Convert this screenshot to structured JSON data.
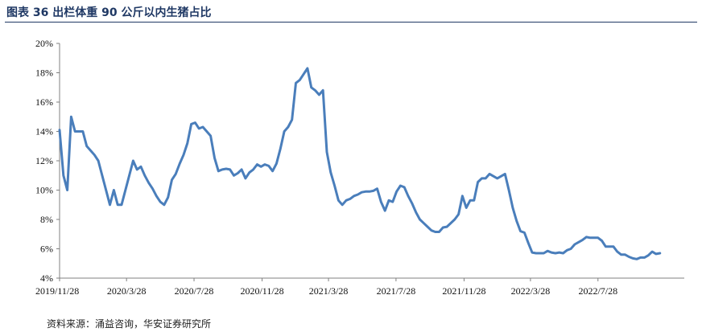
{
  "figure": {
    "title": "图表 36 出栏体重 90 公斤以内生猪占比",
    "source": "资料来源：涌益咨询，华安证券研究所"
  },
  "colors": {
    "title": "#1f3864",
    "line": "#4a7ebb",
    "axis": "#808080"
  },
  "chart_data": {
    "type": "line",
    "title": "",
    "xlabel": "",
    "ylabel": "",
    "ylim": [
      4,
      20
    ],
    "yticks": [
      "4%",
      "6%",
      "8%",
      "10%",
      "12%",
      "14%",
      "16%",
      "18%",
      "20%"
    ],
    "x_range": [
      "2019-11-28",
      "2022-12-31"
    ],
    "xticks": [
      "2019/11/28",
      "2020/3/28",
      "2020/7/28",
      "2020/11/28",
      "2021/3/28",
      "2021/7/28",
      "2021/11/28",
      "2022/3/28",
      "2022/7/28"
    ],
    "grid": false,
    "legend": "none",
    "series": [
      {
        "name": "",
        "points": [
          [
            "2019-11-28",
            14.1
          ],
          [
            "2019-12-05",
            11.0
          ],
          [
            "2019-12-12",
            10.0
          ],
          [
            "2019-12-19",
            15.0
          ],
          [
            "2019-12-26",
            14.0
          ],
          [
            "2020-01-02",
            14.0
          ],
          [
            "2020-01-09",
            14.0
          ],
          [
            "2020-01-16",
            13.0
          ],
          [
            "2020-01-23",
            12.7
          ],
          [
            "2020-01-30",
            12.4
          ],
          [
            "2020-02-06",
            12.0
          ],
          [
            "2020-02-13",
            11.0
          ],
          [
            "2020-02-20",
            10.0
          ],
          [
            "2020-02-27",
            9.0
          ],
          [
            "2020-03-05",
            10.0
          ],
          [
            "2020-03-12",
            9.0
          ],
          [
            "2020-03-19",
            9.0
          ],
          [
            "2020-03-26",
            10.0
          ],
          [
            "2020-04-02",
            11.0
          ],
          [
            "2020-04-09",
            12.0
          ],
          [
            "2020-04-16",
            11.4
          ],
          [
            "2020-04-23",
            11.6
          ],
          [
            "2020-04-30",
            11.0
          ],
          [
            "2020-05-07",
            10.5
          ],
          [
            "2020-05-14",
            10.1
          ],
          [
            "2020-05-21",
            9.6
          ],
          [
            "2020-05-28",
            9.2
          ],
          [
            "2020-06-04",
            9.0
          ],
          [
            "2020-06-11",
            9.5
          ],
          [
            "2020-06-18",
            10.7
          ],
          [
            "2020-06-25",
            11.1
          ],
          [
            "2020-07-02",
            11.8
          ],
          [
            "2020-07-09",
            12.4
          ],
          [
            "2020-07-16",
            13.2
          ],
          [
            "2020-07-23",
            14.5
          ],
          [
            "2020-07-30",
            14.6
          ],
          [
            "2020-08-06",
            14.2
          ],
          [
            "2020-08-13",
            14.3
          ],
          [
            "2020-08-20",
            14.0
          ],
          [
            "2020-08-27",
            13.7
          ],
          [
            "2020-09-03",
            12.2
          ],
          [
            "2020-09-10",
            11.3
          ],
          [
            "2020-09-17",
            11.4
          ],
          [
            "2020-09-24",
            11.45
          ],
          [
            "2020-10-01",
            11.4
          ],
          [
            "2020-10-08",
            11.0
          ],
          [
            "2020-10-15",
            11.15
          ],
          [
            "2020-10-22",
            11.4
          ],
          [
            "2020-10-29",
            10.8
          ],
          [
            "2020-11-05",
            11.2
          ],
          [
            "2020-11-12",
            11.4
          ],
          [
            "2020-11-19",
            11.75
          ],
          [
            "2020-11-26",
            11.6
          ],
          [
            "2020-12-03",
            11.75
          ],
          [
            "2020-12-10",
            11.65
          ],
          [
            "2020-12-17",
            11.3
          ],
          [
            "2020-12-24",
            11.8
          ],
          [
            "2020-12-31",
            12.8
          ],
          [
            "2021-01-07",
            14.0
          ],
          [
            "2021-01-14",
            14.3
          ],
          [
            "2021-01-21",
            14.8
          ],
          [
            "2021-01-28",
            17.3
          ],
          [
            "2021-02-04",
            17.5
          ],
          [
            "2021-02-11",
            17.9
          ],
          [
            "2021-02-18",
            18.3
          ],
          [
            "2021-02-25",
            17.0
          ],
          [
            "2021-03-04",
            16.8
          ],
          [
            "2021-03-11",
            16.5
          ],
          [
            "2021-03-18",
            16.8
          ],
          [
            "2021-03-25",
            12.6
          ],
          [
            "2021-04-01",
            11.2
          ],
          [
            "2021-04-08",
            10.3
          ],
          [
            "2021-04-15",
            9.3
          ],
          [
            "2021-04-22",
            9.0
          ],
          [
            "2021-04-29",
            9.3
          ],
          [
            "2021-05-06",
            9.4
          ],
          [
            "2021-05-13",
            9.6
          ],
          [
            "2021-05-20",
            9.7
          ],
          [
            "2021-05-27",
            9.85
          ],
          [
            "2021-06-03",
            9.9
          ],
          [
            "2021-06-10",
            9.9
          ],
          [
            "2021-06-17",
            9.95
          ],
          [
            "2021-06-24",
            10.1
          ],
          [
            "2021-07-01",
            9.2
          ],
          [
            "2021-07-08",
            8.6
          ],
          [
            "2021-07-15",
            9.3
          ],
          [
            "2021-07-22",
            9.2
          ],
          [
            "2021-07-29",
            9.9
          ],
          [
            "2021-08-05",
            10.3
          ],
          [
            "2021-08-12",
            10.2
          ],
          [
            "2021-08-19",
            9.6
          ],
          [
            "2021-08-26",
            9.1
          ],
          [
            "2021-09-02",
            8.5
          ],
          [
            "2021-09-09",
            8.0
          ],
          [
            "2021-09-16",
            7.75
          ],
          [
            "2021-09-23",
            7.5
          ],
          [
            "2021-09-30",
            7.25
          ],
          [
            "2021-10-07",
            7.15
          ],
          [
            "2021-10-14",
            7.15
          ],
          [
            "2021-10-21",
            7.45
          ],
          [
            "2021-10-28",
            7.5
          ],
          [
            "2021-11-04",
            7.75
          ],
          [
            "2021-11-11",
            8.0
          ],
          [
            "2021-11-18",
            8.35
          ],
          [
            "2021-11-25",
            9.6
          ],
          [
            "2021-12-02",
            8.8
          ],
          [
            "2021-12-09",
            9.3
          ],
          [
            "2021-12-16",
            9.3
          ],
          [
            "2021-12-23",
            10.55
          ],
          [
            "2021-12-30",
            10.8
          ],
          [
            "2022-01-06",
            10.8
          ],
          [
            "2022-01-13",
            11.1
          ],
          [
            "2022-01-20",
            10.95
          ],
          [
            "2022-01-27",
            10.8
          ],
          [
            "2022-02-03",
            10.95
          ],
          [
            "2022-02-10",
            11.1
          ],
          [
            "2022-02-17",
            10.0
          ],
          [
            "2022-02-24",
            8.8
          ],
          [
            "2022-03-03",
            7.9
          ],
          [
            "2022-03-10",
            7.2
          ],
          [
            "2022-03-17",
            7.1
          ],
          [
            "2022-03-24",
            6.4
          ],
          [
            "2022-03-31",
            5.75
          ],
          [
            "2022-04-07",
            5.7
          ],
          [
            "2022-04-14",
            5.7
          ],
          [
            "2022-04-21",
            5.7
          ],
          [
            "2022-04-28",
            5.85
          ],
          [
            "2022-05-05",
            5.75
          ],
          [
            "2022-05-12",
            5.7
          ],
          [
            "2022-05-19",
            5.75
          ],
          [
            "2022-05-26",
            5.7
          ],
          [
            "2022-06-02",
            5.9
          ],
          [
            "2022-06-09",
            6.0
          ],
          [
            "2022-06-16",
            6.3
          ],
          [
            "2022-06-23",
            6.45
          ],
          [
            "2022-06-30",
            6.6
          ],
          [
            "2022-07-07",
            6.8
          ],
          [
            "2022-07-14",
            6.75
          ],
          [
            "2022-07-21",
            6.75
          ],
          [
            "2022-07-28",
            6.75
          ],
          [
            "2022-08-04",
            6.55
          ],
          [
            "2022-08-11",
            6.15
          ],
          [
            "2022-08-18",
            6.15
          ],
          [
            "2022-08-25",
            6.15
          ],
          [
            "2022-09-01",
            5.8
          ],
          [
            "2022-09-08",
            5.6
          ],
          [
            "2022-09-15",
            5.6
          ],
          [
            "2022-09-22",
            5.45
          ],
          [
            "2022-09-29",
            5.35
          ],
          [
            "2022-10-06",
            5.3
          ],
          [
            "2022-10-13",
            5.4
          ],
          [
            "2022-10-20",
            5.4
          ],
          [
            "2022-10-27",
            5.55
          ],
          [
            "2022-11-03",
            5.8
          ],
          [
            "2022-11-10",
            5.65
          ],
          [
            "2022-11-17",
            5.7
          ]
        ]
      }
    ]
  }
}
